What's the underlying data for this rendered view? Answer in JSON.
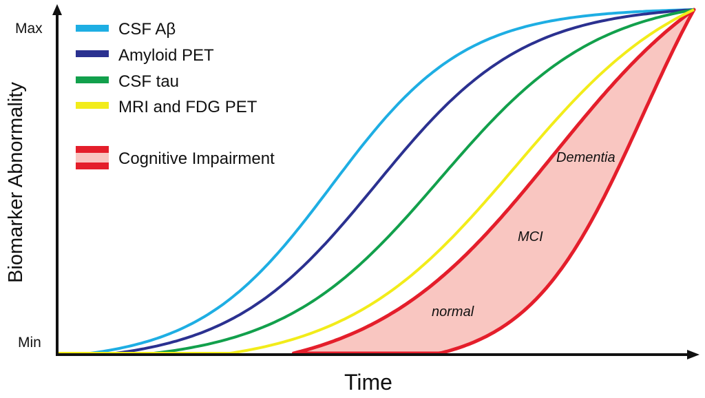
{
  "chart_data": {
    "type": "line",
    "title": "",
    "xlabel": "Time",
    "ylabel": "Biomarker Abnormality",
    "y_ticks": [
      "Min",
      "Max"
    ],
    "ylim": [
      "Min",
      "Max"
    ],
    "grid": false,
    "legend_position": "top-left",
    "series": [
      {
        "name": "CSF Aβ",
        "color": "#1eaee3",
        "shape": "sigmoid",
        "onset": 0.05,
        "midpoint": 0.43,
        "steepness": 9.5
      },
      {
        "name": "Amyloid PET",
        "color": "#2b3190",
        "shape": "sigmoid",
        "onset": 0.09,
        "midpoint": 0.5,
        "steepness": 8.6
      },
      {
        "name": "CSF tau",
        "color": "#12a04c",
        "shape": "sigmoid",
        "onset": 0.15,
        "midpoint": 0.6,
        "steepness": 8.0
      },
      {
        "name": "MRI and FDG PET",
        "color": "#f2ec1a",
        "shape": "sigmoid",
        "onset": 0.27,
        "midpoint": 0.72,
        "steepness": 7.4
      }
    ],
    "band": {
      "name": "Cognitive Impairment",
      "edge_color": "#e41e2b",
      "fill_color": "#f9c6c1",
      "annotations": [
        "normal",
        "MCI",
        "Dementia"
      ]
    }
  }
}
